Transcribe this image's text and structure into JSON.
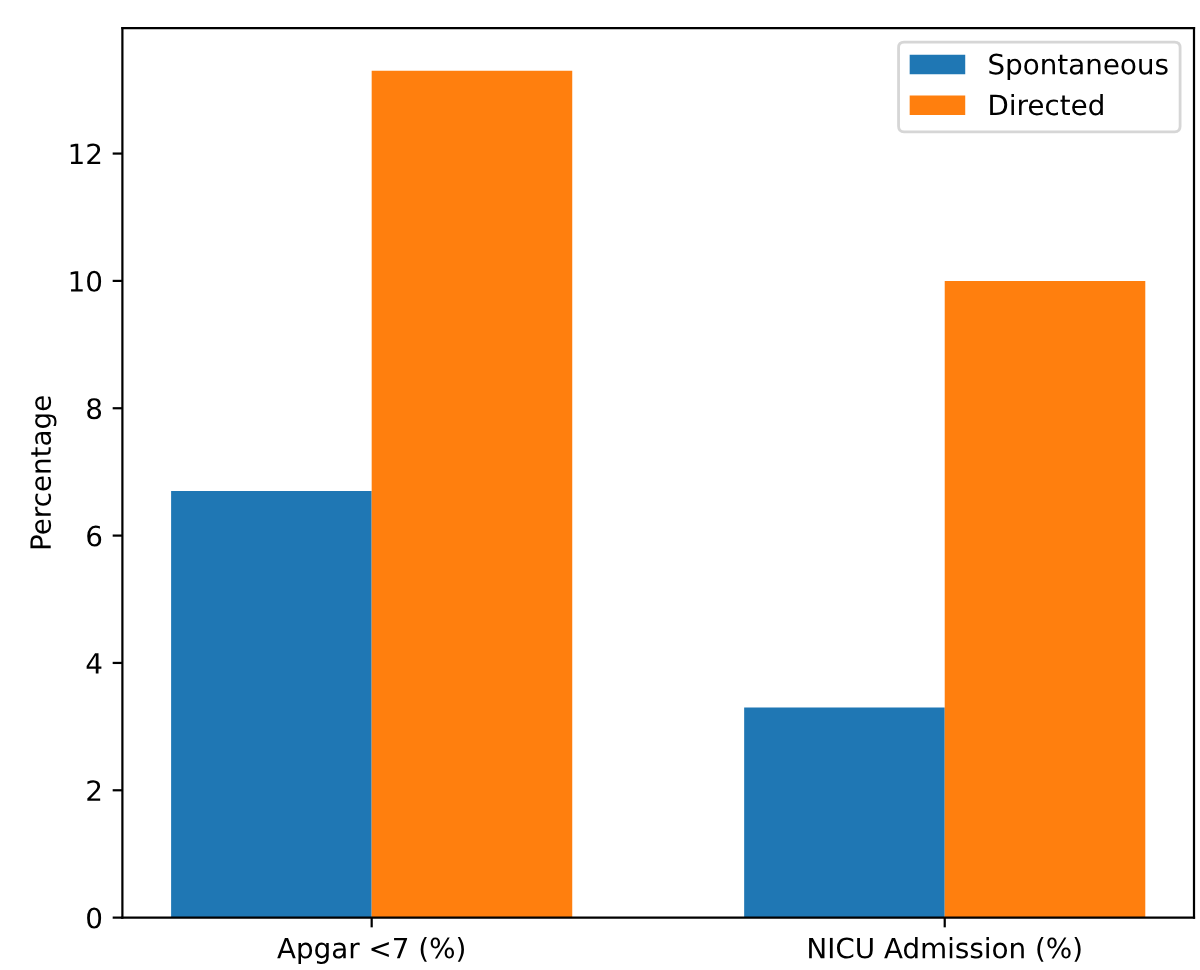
{
  "chart_data": {
    "type": "bar",
    "ylabel": "Percentage",
    "categories": [
      "Apgar <7 (%)",
      "NICU Admission (%)"
    ],
    "series": [
      {
        "name": "Spontaneous",
        "color": "#1f77b4",
        "values": [
          6.7,
          3.3
        ]
      },
      {
        "name": "Directed",
        "color": "#ff7f0e",
        "values": [
          13.3,
          10.0
        ]
      }
    ],
    "ylim": [
      0,
      13.97
    ],
    "yticks": [
      0,
      2,
      4,
      6,
      8,
      10,
      12
    ],
    "grid": false,
    "legend": "top right"
  }
}
